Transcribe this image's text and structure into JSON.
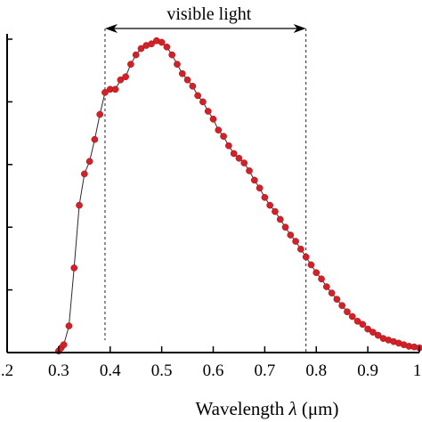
{
  "chart_data": {
    "type": "line",
    "xlabel_prefix": "Wavelength ",
    "xlabel_symbol": "λ",
    "xlabel_unit": " (μm)",
    "xlim": [
      0.2,
      1.0
    ],
    "ylim": [
      0,
      1.0
    ],
    "xticks": [
      0.2,
      0.3,
      0.4,
      0.5,
      0.6,
      0.7,
      0.8,
      0.9,
      1.0
    ],
    "xtick_labels": [
      ".2",
      "0.3",
      "0.4",
      "0.5",
      "0.6",
      "0.7",
      "0.8",
      "0.9",
      "1."
    ],
    "yticks": [
      0,
      0.2,
      0.4,
      0.6,
      0.8,
      1.0
    ],
    "annotation": {
      "label": "visible light",
      "x_start": 0.39,
      "x_end": 0.78
    },
    "colors": {
      "marker": "#d42027",
      "line": "#2b2b2b",
      "axis": "#000000"
    },
    "series": [
      {
        "x": [
          0.3,
          0.305,
          0.31,
          0.32,
          0.33,
          0.34,
          0.35,
          0.36,
          0.37,
          0.38,
          0.39,
          0.4,
          0.41,
          0.42,
          0.43,
          0.44,
          0.45,
          0.46,
          0.47,
          0.48,
          0.49,
          0.5,
          0.51,
          0.52,
          0.53,
          0.54,
          0.55,
          0.56,
          0.57,
          0.58,
          0.59,
          0.6,
          0.61,
          0.62,
          0.63,
          0.64,
          0.65,
          0.66,
          0.67,
          0.68,
          0.69,
          0.7,
          0.71,
          0.72,
          0.73,
          0.74,
          0.75,
          0.76,
          0.77,
          0.78,
          0.79,
          0.8,
          0.81,
          0.82,
          0.83,
          0.84,
          0.85,
          0.86,
          0.87,
          0.88,
          0.89,
          0.9,
          0.91,
          0.92,
          0.93,
          0.94,
          0.95,
          0.96,
          0.97,
          0.98,
          0.99,
          1.0
        ],
        "y": [
          0.005,
          0.015,
          0.025,
          0.085,
          0.27,
          0.47,
          0.57,
          0.61,
          0.68,
          0.76,
          0.83,
          0.84,
          0.84,
          0.87,
          0.88,
          0.92,
          0.95,
          0.97,
          0.98,
          0.985,
          0.995,
          0.99,
          0.975,
          0.95,
          0.92,
          0.89,
          0.87,
          0.85,
          0.82,
          0.8,
          0.77,
          0.745,
          0.71,
          0.69,
          0.66,
          0.635,
          0.62,
          0.605,
          0.58,
          0.55,
          0.525,
          0.495,
          0.47,
          0.45,
          0.425,
          0.4,
          0.375,
          0.355,
          0.33,
          0.305,
          0.28,
          0.255,
          0.235,
          0.21,
          0.19,
          0.17,
          0.15,
          0.13,
          0.115,
          0.1,
          0.09,
          0.075,
          0.065,
          0.055,
          0.045,
          0.04,
          0.035,
          0.03,
          0.025,
          0.02,
          0.018,
          0.015
        ]
      }
    ]
  }
}
